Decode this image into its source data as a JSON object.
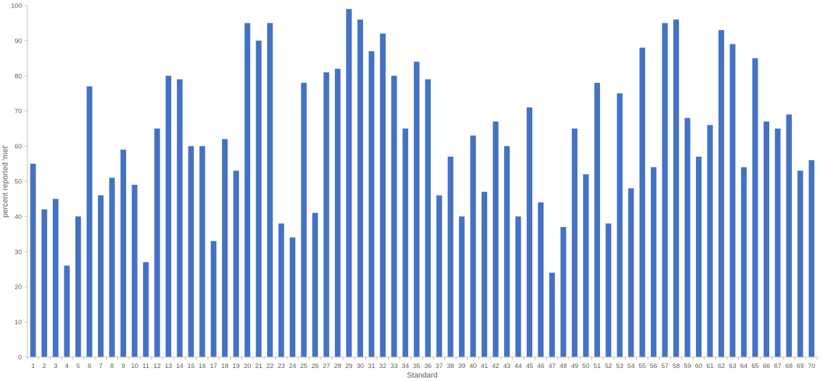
{
  "chart_data": {
    "type": "bar",
    "title": "",
    "xlabel": "Standard",
    "ylabel": "percent reported 'met'",
    "ylim": [
      0,
      100
    ],
    "ytick_step": 10,
    "grid": false,
    "legend": "none",
    "bar_color": "#4472C4",
    "categories": [
      "1",
      "2",
      "3",
      "4",
      "5",
      "6",
      "7",
      "8",
      "9",
      "10",
      "11",
      "12",
      "13",
      "14",
      "15",
      "16",
      "17",
      "18",
      "19",
      "20",
      "21",
      "22",
      "23",
      "24",
      "25",
      "26",
      "27",
      "28",
      "29",
      "30",
      "31",
      "32",
      "33",
      "34",
      "35",
      "36",
      "37",
      "38",
      "39",
      "40",
      "41",
      "42",
      "43",
      "44",
      "45",
      "46",
      "47",
      "48",
      "49",
      "50",
      "51",
      "52",
      "53",
      "54",
      "55",
      "56",
      "57",
      "58",
      "59",
      "60",
      "61",
      "62",
      "63",
      "64",
      "65",
      "66",
      "67",
      "68",
      "69",
      "70"
    ],
    "values": [
      55,
      42,
      45,
      26,
      40,
      77,
      46,
      51,
      59,
      49,
      27,
      65,
      80,
      79,
      60,
      60,
      33,
      62,
      53,
      95,
      90,
      95,
      38,
      34,
      78,
      41,
      81,
      82,
      99,
      96,
      87,
      92,
      80,
      65,
      84,
      79,
      46,
      57,
      40,
      63,
      47,
      67,
      60,
      40,
      71,
      44,
      24,
      37,
      65,
      52,
      78,
      38,
      75,
      48,
      88,
      54,
      95,
      96,
      68,
      57,
      66,
      93,
      89,
      54,
      85,
      67,
      65,
      69,
      53,
      56
    ]
  }
}
